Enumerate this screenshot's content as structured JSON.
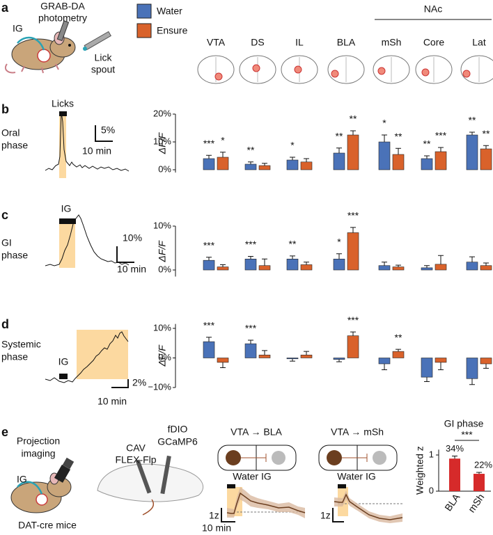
{
  "panel_labels": [
    "a",
    "b",
    "c",
    "d",
    "e"
  ],
  "panel_a": {
    "ig": "IG",
    "photometry": [
      "GRAB-DA",
      "photometry"
    ],
    "lick_spout": [
      "Lick",
      "spout"
    ],
    "nac": "NAc",
    "regions": [
      "VTA",
      "DS",
      "IL",
      "BLA",
      "mSh",
      "Core",
      "Lat"
    ]
  },
  "traces": [
    {
      "label": [
        "Oral",
        "phase"
      ],
      "event": "Licks",
      "scale_y": "5%",
      "scale_x": "10 min"
    },
    {
      "label": [
        "GI",
        "phase"
      ],
      "event": "IG",
      "scale_y": "10%",
      "scale_x": "10 min"
    },
    {
      "label": [
        "Systemic",
        "phase"
      ],
      "event": "IG",
      "scale_y": "2%",
      "scale_x": "10 min"
    }
  ],
  "panel_e": {
    "title": [
      "Projection",
      "imaging"
    ],
    "ig": "IG",
    "mice": "DAT-cre mice",
    "cav": [
      "CAV",
      "FLEX-Flp"
    ],
    "fdio": [
      "fDIO",
      "GCaMP6"
    ],
    "traces": [
      {
        "title": "VTA → BLA",
        "event": "Water IG",
        "scale_y": "1z",
        "scale_x": "10 min"
      },
      {
        "title": "VTA → mSh",
        "event": "Water IG",
        "scale_y": "1z"
      }
    ]
  },
  "chart_data": [
    {
      "type": "bar",
      "ylabel": "ΔF/F",
      "ylim": [
        -1,
        20
      ],
      "yticks": [
        {
          "value": 0,
          "label": "0%"
        },
        {
          "value": 10,
          "label": "10%"
        },
        {
          "value": 20,
          "label": "20%"
        }
      ],
      "series": [
        {
          "name": "Water",
          "color": "#4a72b8",
          "values": [
            4,
            2,
            3.5,
            6,
            10,
            4,
            12.5
          ],
          "errors": [
            1.2,
            0.8,
            1,
            1.8,
            2.5,
            1,
            1
          ],
          "stars": [
            "***",
            "**",
            "*",
            "**",
            "*",
            "**",
            "**"
          ]
        },
        {
          "name": "Ensure",
          "color": "#d9622b",
          "values": [
            4.5,
            1.5,
            2.8,
            12.5,
            5.5,
            6.5,
            7.5
          ],
          "errors": [
            1.8,
            0.8,
            1.2,
            1.5,
            2.2,
            1.5,
            1.2
          ],
          "stars": [
            "*",
            null,
            null,
            "**",
            "**",
            "***",
            "**"
          ]
        }
      ]
    },
    {
      "type": "bar",
      "ylabel": "ΔF/F",
      "ylim": [
        -1.5,
        10
      ],
      "yticks": [
        {
          "value": 0,
          "label": "0%"
        },
        {
          "value": 10,
          "label": "10%"
        }
      ],
      "series": [
        {
          "color": "#4a72b8",
          "values": [
            2.2,
            2.5,
            2.5,
            2.5,
            1,
            0.5,
            1.8
          ],
          "errors": [
            0.7,
            0.6,
            0.7,
            1.2,
            0.8,
            0.5,
            1.2
          ],
          "stars": [
            "***",
            "***",
            "**",
            "*",
            null,
            null,
            null
          ]
        },
        {
          "color": "#d9622b",
          "values": [
            0.7,
            1,
            1.2,
            8.5,
            0.7,
            1.3,
            1
          ],
          "errors": [
            0.5,
            1.5,
            0.6,
            1.2,
            0.4,
            2,
            0.6
          ],
          "stars": [
            null,
            null,
            null,
            "***",
            null,
            null,
            null
          ]
        }
      ]
    },
    {
      "type": "bar",
      "ylabel": "ΔF/F",
      "ylim": [
        -10,
        11.5
      ],
      "yticks": [
        {
          "value": -10,
          "label": "−10%"
        },
        {
          "value": 0,
          "label": "0%"
        },
        {
          "value": 10,
          "label": "10%"
        }
      ],
      "series": [
        {
          "color": "#4a72b8",
          "values": [
            5.5,
            4.8,
            -0.3,
            -0.5,
            -2,
            -6.5,
            -7
          ],
          "errors": [
            1.5,
            1.2,
            0.8,
            0.8,
            2,
            1.5,
            2
          ],
          "stars": [
            "***",
            "***",
            null,
            null,
            null,
            null,
            null
          ]
        },
        {
          "color": "#d9622b",
          "values": [
            -1.5,
            1,
            1,
            7.5,
            2.2,
            -1.5,
            -2
          ],
          "errors": [
            1.8,
            1.5,
            1.2,
            1.3,
            0.7,
            2.5,
            1.5
          ],
          "stars": [
            null,
            null,
            null,
            "***",
            "**",
            null,
            null
          ]
        }
      ]
    },
    {
      "type": "bar",
      "title": "GI phase",
      "ylabel": "Weighted z",
      "categories": [
        "BLA",
        "mSh"
      ],
      "values": [
        0.9,
        0.48
      ],
      "errors": [
        0.07,
        0.04
      ],
      "annotations": [
        "34%",
        "22%"
      ],
      "significance": "***",
      "color": "#d62a2a",
      "ylim": [
        0,
        1.15
      ],
      "yticks": [
        0,
        1
      ]
    }
  ]
}
